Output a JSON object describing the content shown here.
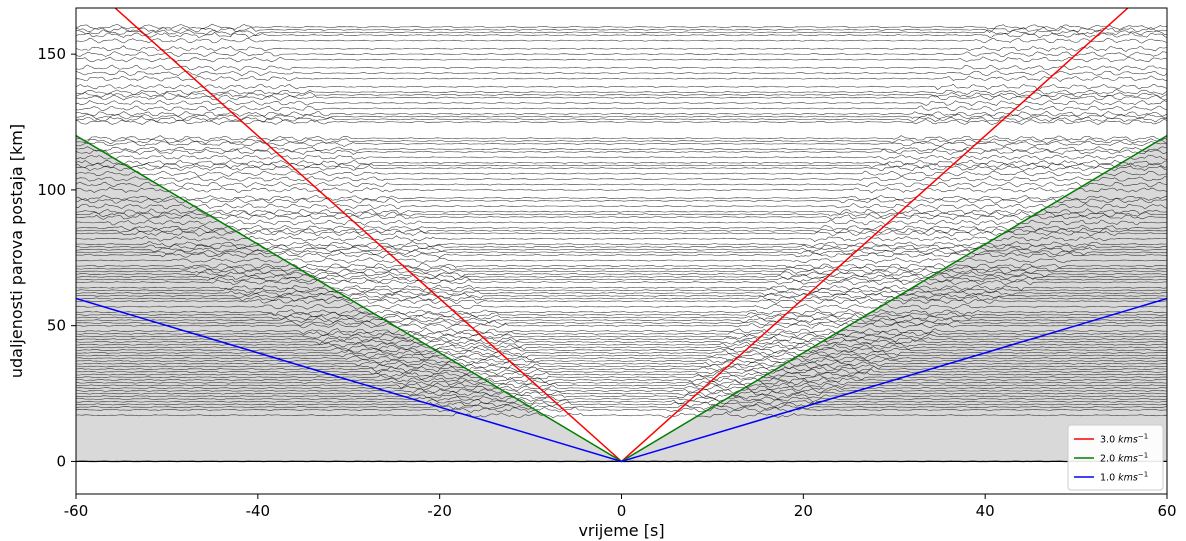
{
  "chart_data": {
    "type": "line",
    "xlabel": "vrijeme [s]",
    "ylabel": "udaljenosti parova postaja [km]",
    "xlim": [
      -60,
      60
    ],
    "ylim": [
      -12,
      167
    ],
    "xticks": [
      -60,
      -40,
      -20,
      0,
      20,
      40,
      60
    ],
    "yticks": [
      0,
      50,
      100,
      150
    ],
    "grid": false,
    "legend_position": "bottom-right",
    "shaded_region": {
      "description_color": "#d9d9d9",
      "velocity": 2.0
    },
    "series": [
      {
        "name": "3.0 kms-1",
        "label_main": "3.0 ",
        "label_unit": "kms",
        "label_exp": "−1",
        "color": "#ff0000",
        "velocity": 3.0,
        "points": [
          [
            -55.7,
            167
          ],
          [
            0,
            0
          ],
          [
            55.7,
            167
          ]
        ]
      },
      {
        "name": "2.0 kms-1",
        "label_main": "2.0 ",
        "label_unit": "kms",
        "label_exp": "−1",
        "color": "#008000",
        "velocity": 2.0,
        "points": [
          [
            -60,
            120
          ],
          [
            0,
            0
          ],
          [
            60,
            120
          ]
        ]
      },
      {
        "name": "1.0 kms-1",
        "label_main": "1.0 ",
        "label_unit": "kms",
        "label_exp": "−1",
        "color": "#0000ff",
        "velocity": 1.0,
        "points": [
          [
            -60,
            60
          ],
          [
            0,
            0
          ],
          [
            60,
            60
          ]
        ]
      }
    ],
    "trace_distances_km": [
      0,
      17,
      19,
      20,
      21,
      22,
      23,
      24,
      25,
      26,
      27,
      28,
      29,
      30,
      31,
      32,
      33,
      34,
      35,
      36,
      37,
      38,
      39,
      40,
      41,
      42,
      43,
      44,
      45,
      46,
      47,
      48,
      50,
      51,
      52,
      53,
      54,
      55,
      57,
      59,
      60,
      61,
      62,
      63,
      64,
      66,
      67,
      68,
      69,
      70,
      71,
      72,
      74,
      76,
      77,
      78,
      79,
      80,
      82,
      84,
      85,
      86,
      88,
      90,
      91,
      92,
      94,
      96,
      97,
      100,
      102,
      104,
      106,
      108,
      109,
      110,
      112,
      114,
      115,
      117,
      118,
      119,
      125,
      126,
      127,
      128,
      130,
      132,
      134,
      135,
      136,
      138,
      141,
      143,
      145,
      148,
      150,
      152,
      155,
      157,
      158,
      159,
      160
    ]
  }
}
